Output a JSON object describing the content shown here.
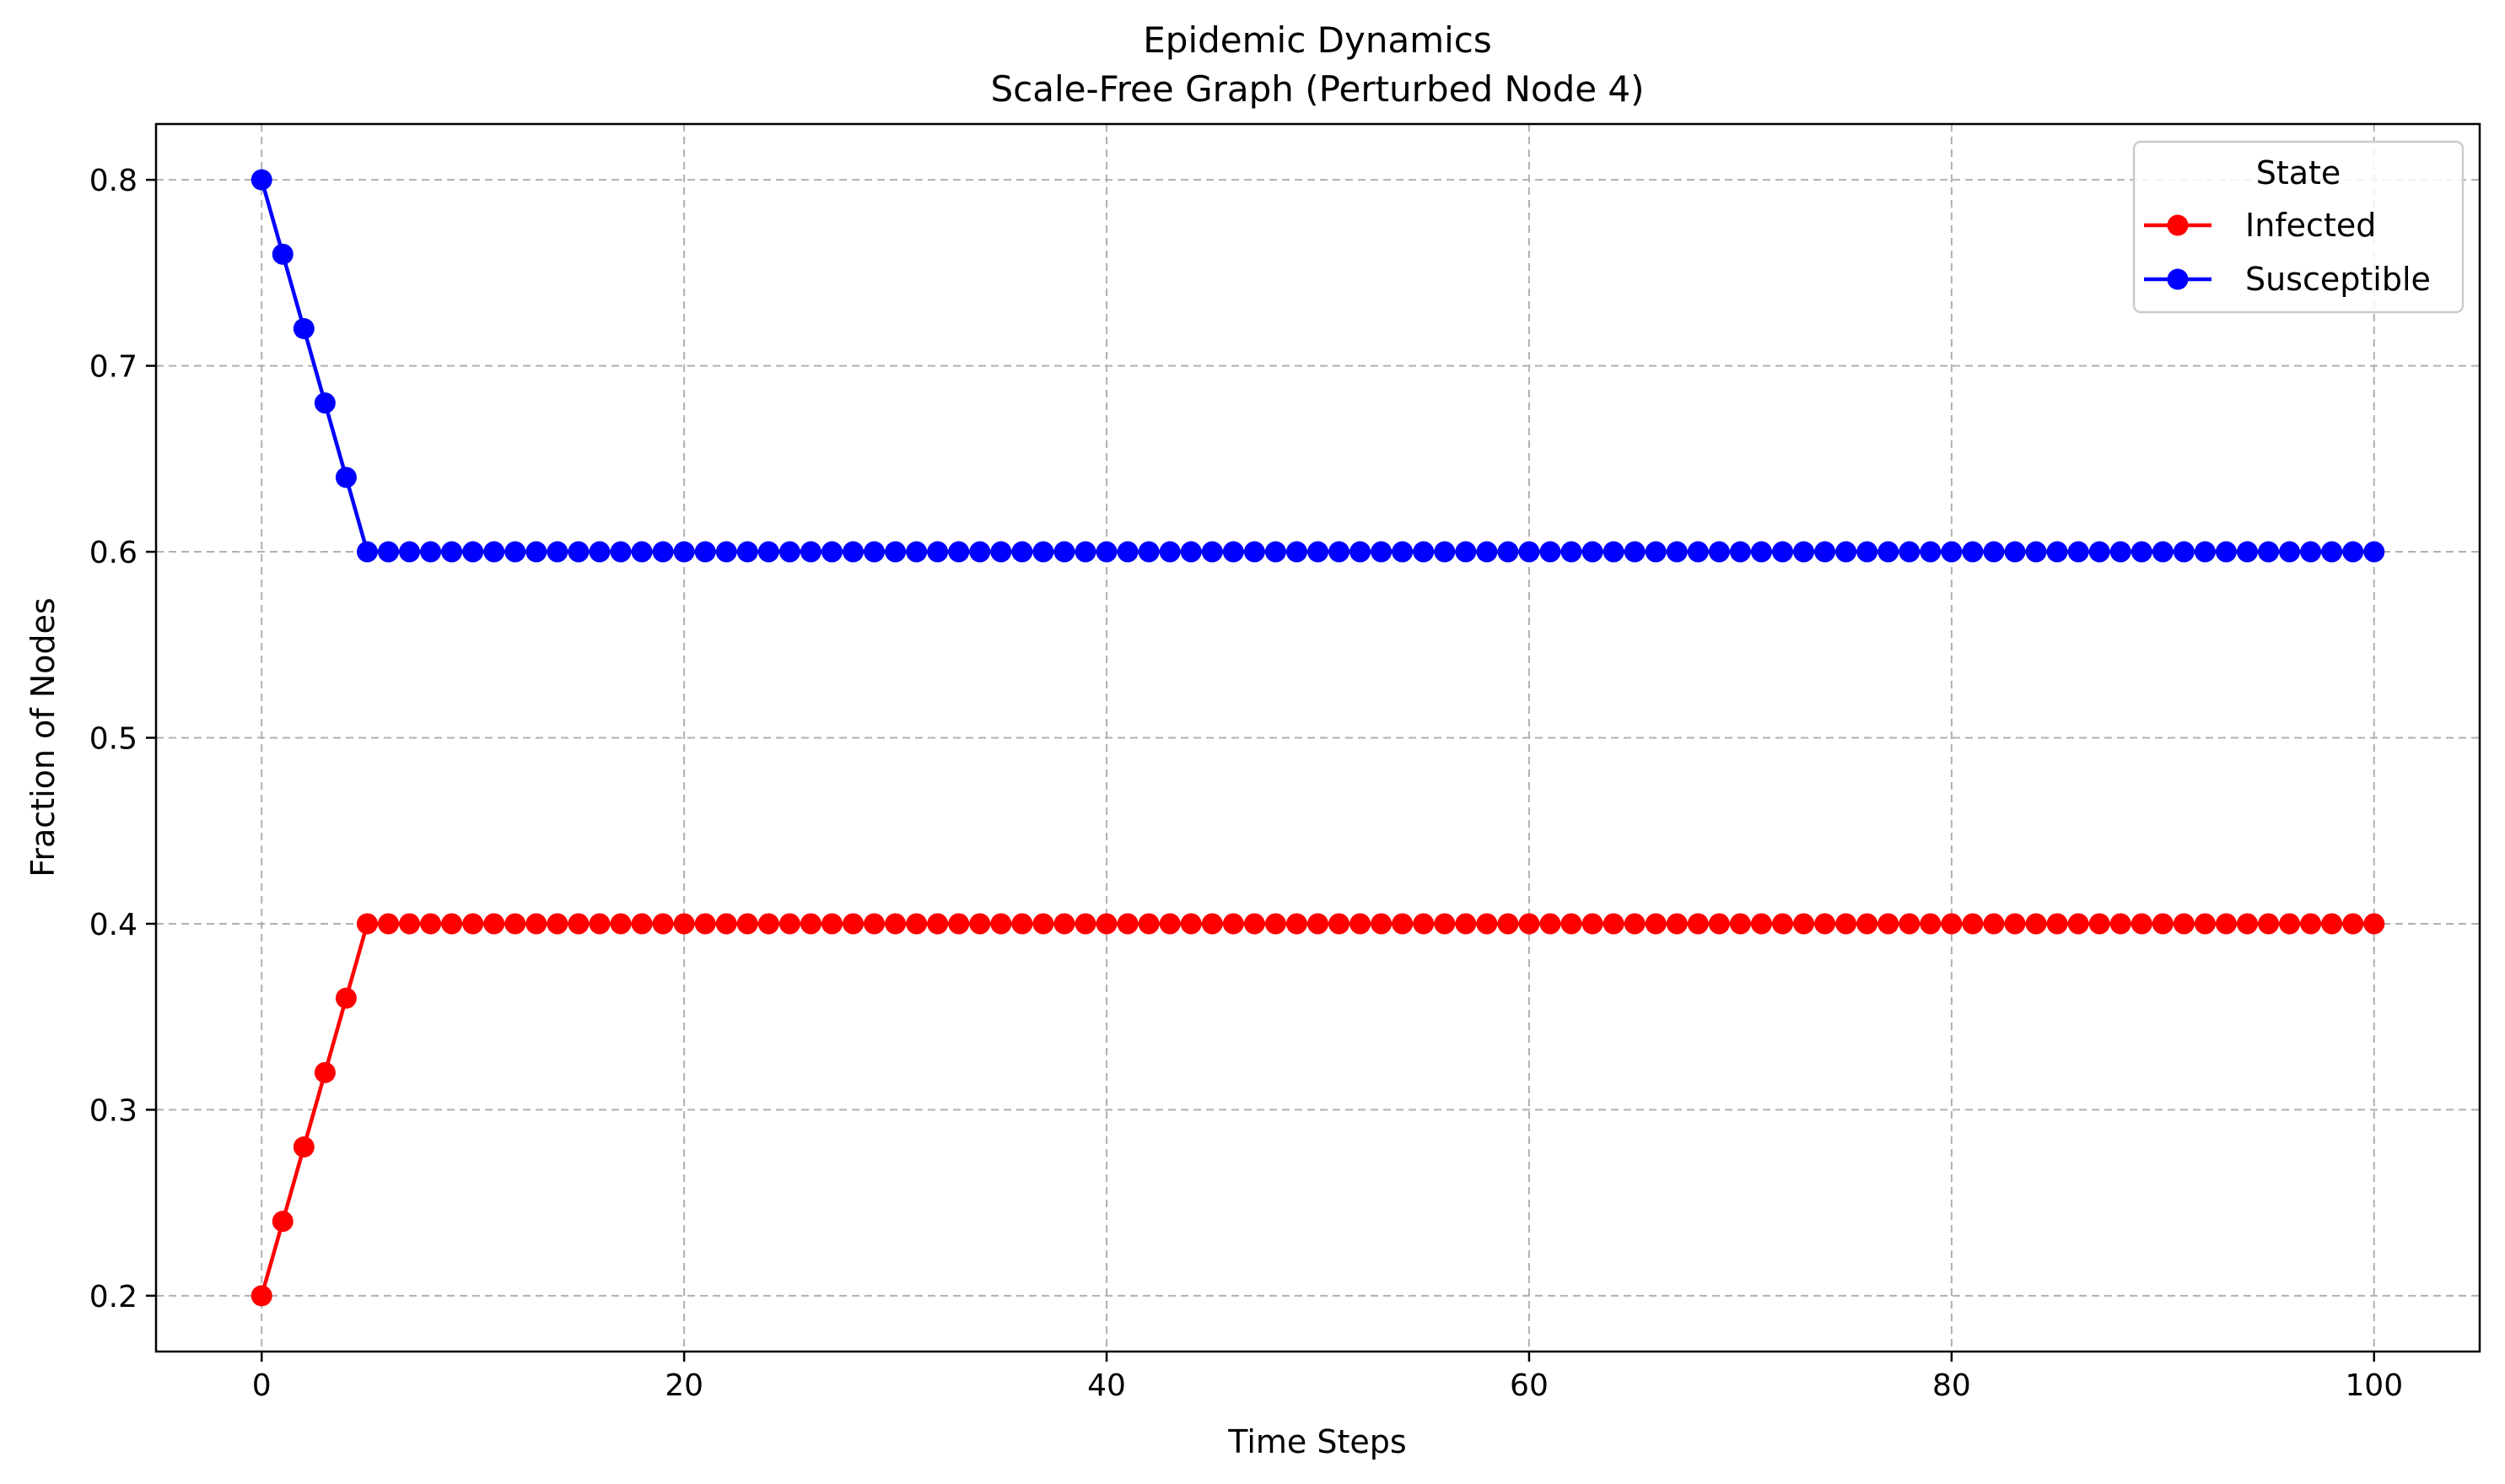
{
  "chart_data": {
    "type": "line",
    "title_lines": [
      "Epidemic Dynamics",
      "Scale-Free Graph (Perturbed Node 4)"
    ],
    "xlabel": "Time Steps",
    "ylabel": "Fraction of Nodes",
    "xlim": [
      -5,
      105
    ],
    "ylim": [
      0.17,
      0.83
    ],
    "x_ticks": [
      0,
      20,
      40,
      60,
      80,
      100
    ],
    "y_ticks": [
      0.2,
      0.3,
      0.4,
      0.5,
      0.6,
      0.7,
      0.8
    ],
    "grid": true,
    "legend": {
      "title": "State",
      "placement": "top-right"
    },
    "x": {
      "start": 0,
      "end": 100,
      "step": 1
    },
    "series": [
      {
        "name": "Infected",
        "color": "#ff0000",
        "marker": "circle",
        "initial_values": [
          0.2,
          0.24,
          0.28,
          0.32,
          0.36
        ],
        "steady_value": 0.4
      },
      {
        "name": "Susceptible",
        "color": "#0000ff",
        "marker": "circle",
        "initial_values": [
          0.8,
          0.76,
          0.72,
          0.68,
          0.64
        ],
        "steady_value": 0.6
      }
    ]
  }
}
